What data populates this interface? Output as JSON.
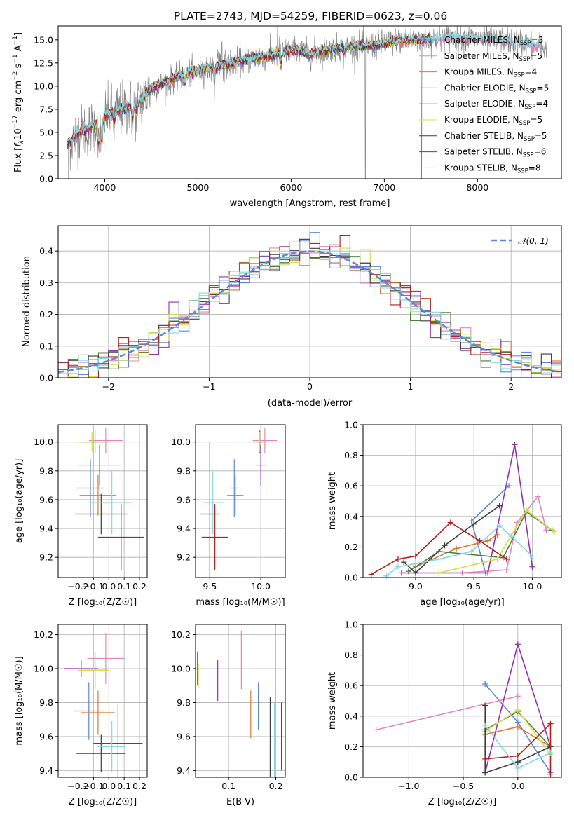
{
  "colors": {
    "Chabrier MILES": "#5b87d8",
    "Salpeter MILES": "#e387b8",
    "Kroupa MILES": "#e0762d",
    "Chabrier ELODIE": "#4a7d3a",
    "Salpeter ELODIE": "#9630b3",
    "Kroupa ELODIE": "#cfe048",
    "Chabrier STELIB": "#3d3d3d",
    "Salpeter STELIB": "#b41f1f",
    "Kroupa STELIB": "#86d8e0"
  },
  "chart_data": [
    {
      "id": "spectrum",
      "type": "line",
      "title": "PLATE=2743, MJD=54259, FIBERID=0623, z=0.06",
      "xlabel": "wavelength [Angstrom, rest frame]",
      "ylabel": "Flux [f_λ 10^-17 erg cm^-2 s^-1 A^-1]",
      "xlim": [
        3500,
        8900
      ],
      "ylim": [
        0,
        16.5
      ],
      "xticks": [
        "4000",
        "5000",
        "6000",
        "7000",
        "8000"
      ],
      "yticks": [
        "0.0",
        "2.5",
        "5.0",
        "7.5",
        "10.0",
        "12.5",
        "15.0"
      ],
      "grid": false,
      "legend_position": "right",
      "continuum": [
        [
          3600,
          3.6
        ],
        [
          3700,
          4.8
        ],
        [
          3800,
          5.3
        ],
        [
          3900,
          5.8
        ],
        [
          4000,
          6.8
        ],
        [
          4100,
          7.2
        ],
        [
          4200,
          7.5
        ],
        [
          4300,
          7.9
        ],
        [
          4400,
          8.6
        ],
        [
          4500,
          9.7
        ],
        [
          4600,
          10.2
        ],
        [
          4700,
          10.6
        ],
        [
          4800,
          11.1
        ],
        [
          4900,
          11.4
        ],
        [
          5000,
          11.7
        ],
        [
          5100,
          11.9
        ],
        [
          5200,
          12.1
        ],
        [
          5300,
          12.3
        ],
        [
          5400,
          12.6
        ],
        [
          5500,
          12.8
        ],
        [
          5600,
          13.0
        ],
        [
          5700,
          13.2
        ],
        [
          5800,
          13.3
        ],
        [
          5900,
          13.6
        ],
        [
          6000,
          13.9
        ],
        [
          6100,
          13.8
        ],
        [
          6200,
          13.4
        ],
        [
          6300,
          13.7
        ],
        [
          6400,
          13.9
        ],
        [
          6500,
          14.1
        ],
        [
          6600,
          14.2
        ],
        [
          6700,
          14.3
        ],
        [
          6800,
          14.3
        ],
        [
          6900,
          14.4
        ],
        [
          7000,
          14.6
        ],
        [
          7100,
          14.8
        ],
        [
          7200,
          14.9
        ],
        [
          7300,
          15.0
        ],
        [
          7400,
          15.0
        ],
        [
          7500,
          15.1
        ],
        [
          7600,
          15.1
        ],
        [
          7700,
          15.2
        ],
        [
          7800,
          15.2
        ],
        [
          7900,
          15.2
        ],
        [
          8000,
          15.1
        ],
        [
          8100,
          15.0
        ],
        [
          8200,
          14.9
        ],
        [
          8300,
          14.9
        ],
        [
          8400,
          14.7
        ],
        [
          8500,
          14.6
        ],
        [
          8600,
          14.4
        ],
        [
          8700,
          14.2
        ]
      ],
      "series": [
        {
          "name": "Chabrier MILES",
          "label_main": "Chabrier MILES, N",
          "nssp": "=3"
        },
        {
          "name": "Salpeter MILES",
          "label_main": "Salpeter MILES, N",
          "nssp": "=5"
        },
        {
          "name": "Kroupa MILES",
          "label_main": "Kroupa MILES, N",
          "nssp": "=4"
        },
        {
          "name": "Chabrier ELODIE",
          "label_main": "Chabrier ELODIE, N",
          "nssp": "=5"
        },
        {
          "name": "Salpeter ELODIE",
          "label_main": "Salpeter ELODIE, N",
          "nssp": "=4"
        },
        {
          "name": "Kroupa ELODIE",
          "label_main": "Kroupa ELODIE, N",
          "nssp": "=5"
        },
        {
          "name": "Chabrier STELIB",
          "label_main": "Chabrier STELIB, N",
          "nssp": "=5"
        },
        {
          "name": "Salpeter STELIB",
          "label_main": "Salpeter STELIB, N",
          "nssp": "=6"
        },
        {
          "name": "Kroupa STELIB",
          "label_main": "Kroupa STELIB, N",
          "nssp": "=8"
        }
      ],
      "nssp_subscript": "SSP"
    },
    {
      "id": "residuals",
      "type": "line",
      "xlabel": "(data-model)/error",
      "ylabel": "Normed distribution",
      "xlim": [
        -2.5,
        2.5
      ],
      "ylim": [
        0,
        0.48
      ],
      "xticks": [
        "−2",
        "−1",
        "0",
        "1",
        "2"
      ],
      "yticks": [
        "0.0",
        "0.1",
        "0.2",
        "0.3",
        "0.4"
      ],
      "grid": true,
      "legend_position": "top-right",
      "legend_label": "𝒩(0, 1)",
      "gaussian": {
        "mean": 0,
        "sigma": 1,
        "color": "#5b87d8"
      }
    },
    {
      "id": "age_vs_Z",
      "type": "scatter",
      "xlabel": "Z [log₁₀(Z/Z☉)]",
      "ylabel": "age  [log₁₀(age/yr)]",
      "xlim": [
        -0.33,
        0.25
      ],
      "ylim": [
        9.06,
        10.12
      ],
      "xticks": [
        -0.2,
        -0.1,
        0.0,
        0.1,
        0.2
      ],
      "xticklabels": [
        "−0.2",
        "−0.1",
        "0.0",
        "0.1",
        "0.2"
      ],
      "yticks": [
        9.2,
        9.4,
        9.6,
        9.8,
        10.0
      ],
      "yticklabels": [
        "9.2",
        "9.4",
        "9.6",
        "9.8",
        "10.0"
      ],
      "grid": true,
      "crosses": [
        {
          "name": "Chabrier MILES",
          "x": -0.12,
          "xerr": 0.09,
          "y": 9.68,
          "yerr": 0.2
        },
        {
          "name": "Salpeter MILES",
          "x": -0.02,
          "xerr": 0.11,
          "y": 10.01,
          "yerr": 0.09
        },
        {
          "name": "Kroupa MILES",
          "x": -0.07,
          "xerr": 0.12,
          "y": 9.63,
          "yerr": 0.14
        },
        {
          "name": "Chabrier ELODIE",
          "x": -0.09,
          "xerr": 0.08,
          "y": 10.0,
          "yerr": 0.08
        },
        {
          "name": "Salpeter ELODIE",
          "x": -0.06,
          "xerr": 0.14,
          "y": 9.84,
          "yerr": 0.14
        },
        {
          "name": "Kroupa ELODIE",
          "x": -0.11,
          "xerr": 0.11,
          "y": 10.0,
          "yerr": 0.07
        },
        {
          "name": "Chabrier STELIB",
          "x": -0.05,
          "xerr": 0.17,
          "y": 9.5,
          "yerr": 0.14
        },
        {
          "name": "Salpeter STELIB",
          "x": 0.08,
          "xerr": 0.15,
          "y": 9.34,
          "yerr": 0.23
        },
        {
          "name": "Kroupa STELIB",
          "x": 0.02,
          "xerr": 0.14,
          "y": 9.58,
          "yerr": 0.22
        }
      ]
    },
    {
      "id": "age_vs_mass",
      "type": "scatter",
      "xlabel": "mass [log₁₀(M/M☉)]",
      "xlim": [
        9.36,
        10.24
      ],
      "ylim": [
        9.06,
        10.12
      ],
      "xticks": [
        9.5,
        10.0
      ],
      "xticklabels": [
        "9.5",
        "10.0"
      ],
      "yticks": [
        9.2,
        9.4,
        9.6,
        9.8,
        10.0
      ],
      "yticklabels": [
        "9.2",
        "9.4",
        "9.6",
        "9.8",
        "10.0"
      ],
      "grid": true,
      "crosses": [
        {
          "name": "Chabrier MILES",
          "x": 9.74,
          "xerr": 0.05,
          "y": 9.68,
          "yerr": 0.2
        },
        {
          "name": "Salpeter MILES",
          "x": 10.04,
          "xerr": 0.12,
          "y": 10.01,
          "yerr": 0.09
        },
        {
          "name": "Kroupa MILES",
          "x": 9.75,
          "xerr": 0.08,
          "y": 9.63,
          "yerr": 0.14
        },
        {
          "name": "Chabrier ELODIE",
          "x": 9.99,
          "xerr": 0.04,
          "y": 10.0,
          "yerr": 0.08
        },
        {
          "name": "Salpeter ELODIE",
          "x": 10.0,
          "xerr": 0.05,
          "y": 9.84,
          "yerr": 0.14
        },
        {
          "name": "Kroupa ELODIE",
          "x": 9.99,
          "xerr": 0.06,
          "y": 10.0,
          "yerr": 0.07
        },
        {
          "name": "Chabrier STELIB",
          "x": 9.5,
          "xerr": 0.1,
          "y": 9.5,
          "yerr": 0.5
        },
        {
          "name": "Salpeter STELIB",
          "x": 9.55,
          "xerr": 0.13,
          "y": 9.34,
          "yerr": 0.23
        },
        {
          "name": "Kroupa STELIB",
          "x": 9.53,
          "xerr": 0.1,
          "y": 9.58,
          "yerr": 0.22
        }
      ]
    },
    {
      "id": "weight_vs_age",
      "type": "line",
      "xlabel": "age  [log₁₀(age/yr)]",
      "ylabel": "mass weight",
      "xlim": [
        8.55,
        10.25
      ],
      "ylim": [
        0,
        1
      ],
      "xticks": [
        9.0,
        9.5,
        10.0
      ],
      "xticklabels": [
        "9.0",
        "9.5",
        "10.0"
      ],
      "yticks": [
        0,
        0.2,
        0.4,
        0.6,
        0.8,
        1.0
      ],
      "yticklabels": [
        "0.0",
        "0.2",
        "0.4",
        "0.6",
        "0.8",
        "1.0"
      ],
      "grid": true,
      "series": [
        {
          "name": "Chabrier MILES",
          "age": [
            9.6,
            9.48,
            9.8
          ],
          "weight": [
            0.03,
            0.37,
            0.6
          ]
        },
        {
          "name": "Salpeter MILES",
          "age": [
            9.4,
            9.78,
            9.87,
            10.05,
            10.12
          ],
          "weight": [
            0.03,
            0.05,
            0.36,
            0.53,
            0.31
          ]
        },
        {
          "name": "Kroupa MILES",
          "age": [
            9.0,
            9.35,
            9.62,
            9.7
          ],
          "weight": [
            0.07,
            0.19,
            0.24,
            0.28
          ]
        },
        {
          "name": "Chabrier ELODIE",
          "age": [
            8.94,
            9.2,
            9.75,
            9.95,
            10.17
          ],
          "weight": [
            0.04,
            0.17,
            0.13,
            0.43,
            0.31
          ]
        },
        {
          "name": "Salpeter ELODIE",
          "age": [
            8.88,
            9.62,
            9.85,
            10.0
          ],
          "weight": [
            0.03,
            0.03,
            0.87,
            0.07
          ]
        },
        {
          "name": "Kroupa ELODIE",
          "age": [
            9.2,
            9.7,
            9.95,
            10.19
          ],
          "weight": [
            0.03,
            0.12,
            0.44,
            0.3
          ]
        },
        {
          "name": "Chabrier STELIB",
          "age": [
            8.9,
            9.0,
            9.25,
            9.5,
            9.72
          ],
          "weight": [
            0.1,
            0.03,
            0.21,
            0.35,
            0.47
          ]
        },
        {
          "name": "Salpeter STELIB",
          "age": [
            8.62,
            8.85,
            9.0,
            9.3,
            9.55,
            9.78
          ],
          "weight": [
            0.02,
            0.12,
            0.14,
            0.36,
            0.24,
            0.12
          ]
        },
        {
          "name": "Kroupa STELIB",
          "age": [
            8.75,
            8.85,
            9.0,
            9.2,
            9.48,
            9.72,
            9.82,
            10.0
          ],
          "weight": [
            0.01,
            0.07,
            0.09,
            0.12,
            0.17,
            0.34,
            0.27,
            0.14
          ]
        }
      ]
    },
    {
      "id": "mass_vs_Z",
      "type": "scatter",
      "xlabel": "Z [log₁₀(Z/Z☉)]",
      "ylabel": "mass [log₁₀(M/M☉)]",
      "xlim": [
        -0.33,
        0.25
      ],
      "ylim": [
        9.36,
        10.26
      ],
      "xticks": [
        -0.2,
        -0.1,
        0.0,
        0.1,
        0.2
      ],
      "xticklabels": [
        "−0.2",
        "−0.1",
        "0.0",
        "0.1",
        "0.2"
      ],
      "yticks": [
        9.4,
        9.6,
        9.8,
        10.0,
        10.2
      ],
      "yticklabels": [
        "9.4",
        "9.6",
        "9.8",
        "10.0",
        "10.2"
      ],
      "grid": true,
      "crosses": [
        {
          "name": "Chabrier MILES",
          "x": -0.13,
          "xerr": 0.1,
          "y": 9.75,
          "yerr": 0.17
        },
        {
          "name": "Salpeter MILES",
          "x": -0.02,
          "xerr": 0.12,
          "y": 10.06,
          "yerr": 0.15
        },
        {
          "name": "Kroupa MILES",
          "x": -0.07,
          "xerr": 0.11,
          "y": 9.74,
          "yerr": 0.13
        },
        {
          "name": "Chabrier ELODIE",
          "x": -0.09,
          "xerr": 0.08,
          "y": 9.99,
          "yerr": 0.11
        },
        {
          "name": "Salpeter ELODIE",
          "x": -0.18,
          "xerr": 0.11,
          "y": 10.0,
          "yerr": 0.05
        },
        {
          "name": "Kroupa ELODIE",
          "x": -0.1,
          "xerr": 0.1,
          "y": 9.99,
          "yerr": 0.02
        },
        {
          "name": "Chabrier STELIB",
          "x": -0.05,
          "xerr": 0.16,
          "y": 9.5,
          "yerr": 0.11
        },
        {
          "name": "Salpeter STELIB",
          "x": 0.06,
          "xerr": 0.16,
          "y": 9.56,
          "yerr": 0.23
        },
        {
          "name": "Kroupa STELIB",
          "x": 0.02,
          "xerr": 0.09,
          "y": 9.54,
          "yerr": 0.15
        }
      ]
    },
    {
      "id": "mass_vs_EBV",
      "type": "scatter",
      "xlabel": "E(B-V)",
      "xlim": [
        0.03,
        0.22
      ],
      "ylim": [
        9.36,
        10.26
      ],
      "xticks": [
        0.1,
        0.2
      ],
      "xticklabels": [
        "0.1",
        "0.2"
      ],
      "yticks": [
        9.4,
        9.6,
        9.8,
        10.0,
        10.2
      ],
      "yticklabels": [
        "9.4",
        "9.6",
        "9.8",
        "10.0",
        "10.2"
      ],
      "grid": true,
      "crosses": [
        {
          "name": "Chabrier MILES",
          "x": 0.163,
          "xerr": 0.0,
          "y": 9.78,
          "yerr": 0.14
        },
        {
          "name": "Salpeter MILES",
          "x": 0.127,
          "xerr": 0.0,
          "y": 10.05,
          "yerr": 0.17
        },
        {
          "name": "Kroupa MILES",
          "x": 0.147,
          "xerr": 0.0,
          "y": 9.73,
          "yerr": 0.14
        },
        {
          "name": "Chabrier ELODIE",
          "x": 0.034,
          "xerr": 0.0,
          "y": 10.0,
          "yerr": 0.1
        },
        {
          "name": "Salpeter ELODIE",
          "x": 0.077,
          "xerr": 0.0,
          "y": 9.93,
          "yerr": 0.12
        },
        {
          "name": "Kroupa ELODIE",
          "x": 0.036,
          "xerr": 0.0,
          "y": 9.96,
          "yerr": 0.07
        },
        {
          "name": "Chabrier STELIB",
          "x": 0.188,
          "xerr": 0.0,
          "y": 9.5,
          "yerr": 0.33
        },
        {
          "name": "Salpeter STELIB",
          "x": 0.212,
          "xerr": 0.0,
          "y": 9.6,
          "yerr": 0.2
        },
        {
          "name": "Kroupa STELIB",
          "x": 0.197,
          "xerr": 0.0,
          "y": 9.55,
          "yerr": 0.25
        }
      ]
    },
    {
      "id": "weight_vs_Z",
      "type": "line",
      "xlabel": "Z [log₁₀(Z/Z☉)]",
      "ylabel": "mass weight",
      "xlim": [
        -1.42,
        0.4
      ],
      "ylim": [
        0,
        1
      ],
      "xticks": [
        -1.0,
        -0.5,
        0.0
      ],
      "xticklabels": [
        "−1.0",
        "−0.5",
        "0.0"
      ],
      "yticks": [
        0,
        0.2,
        0.4,
        0.6,
        0.8,
        1.0
      ],
      "yticklabels": [
        "0.0",
        "0.2",
        "0.4",
        "0.6",
        "0.8",
        "1.0"
      ],
      "grid": true,
      "series": [
        {
          "name": "Chabrier MILES",
          "Z": [
            -0.3,
            0.0,
            0.3
          ],
          "weight": [
            0.61,
            0.36,
            0.03
          ]
        },
        {
          "name": "Salpeter MILES",
          "Z": [
            -1.3,
            0.0
          ],
          "weight": [
            0.31,
            0.53
          ]
        },
        {
          "name": "Kroupa MILES",
          "Z": [
            -0.3,
            0.0,
            0.3
          ],
          "weight": [
            0.28,
            0.33,
            0.2
          ]
        },
        {
          "name": "Chabrier ELODIE",
          "Z": [
            -0.3,
            0.0,
            0.3
          ],
          "weight": [
            0.31,
            0.43,
            0.2
          ]
        },
        {
          "name": "Salpeter ELODIE",
          "Z": [
            -0.3,
            0.0,
            0.3
          ],
          "weight": [
            0.03,
            0.87,
            0.2
          ]
        },
        {
          "name": "Kroupa ELODIE",
          "Z": [
            -0.3,
            0.0,
            0.3
          ],
          "weight": [
            0.3,
            0.44,
            0.15
          ]
        },
        {
          "name": "Chabrier STELIB",
          "Z": [
            -0.3,
            -0.3,
            0.0,
            0.3
          ],
          "weight": [
            0.47,
            0.03,
            0.1,
            0.2
          ]
        },
        {
          "name": "Salpeter STELIB",
          "Z": [
            -0.3,
            0.0,
            0.3,
            0.3
          ],
          "weight": [
            0.12,
            0.14,
            0.35,
            0.02
          ]
        },
        {
          "name": "Kroupa STELIB",
          "Z": [
            -0.3,
            0.0,
            0.3
          ],
          "weight": [
            0.34,
            0.06,
            0.16
          ]
        }
      ]
    }
  ]
}
